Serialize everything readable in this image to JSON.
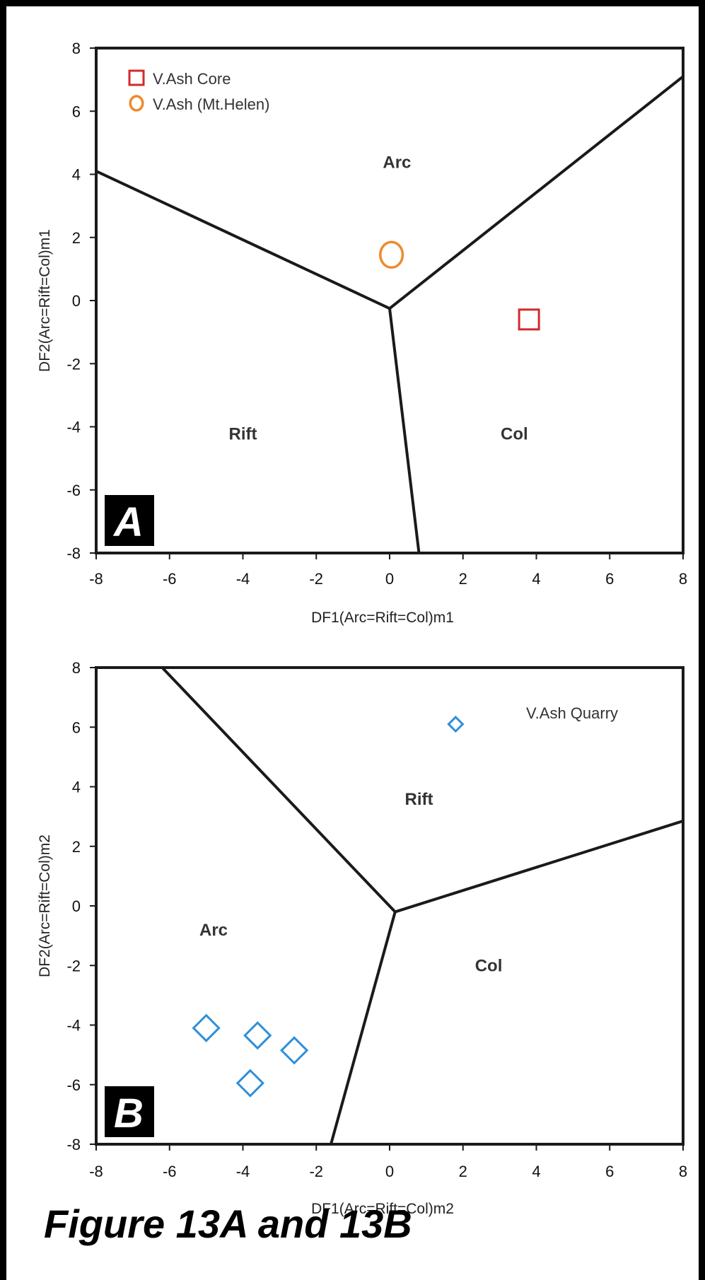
{
  "caption": "Figure 13A and 13B",
  "chart_data": [
    {
      "type": "scatter",
      "panel": "A",
      "xlabel": "DF1(Arc=Rift=Col)m1",
      "ylabel": "DF2(Arc=Rift=Col)m1",
      "xlim": [
        -8,
        8
      ],
      "ylim": [
        -8,
        8
      ],
      "xticks": [
        "-8",
        "-6",
        "-4",
        "-2",
        "0",
        "2",
        "4",
        "6",
        "8"
      ],
      "yticks": [
        "8",
        "6",
        "4",
        "2",
        "0",
        "-2",
        "-4",
        "-6",
        "-8"
      ],
      "grid": false,
      "legend": "top-left",
      "boundaries": [
        [
          [
            -8,
            4.1
          ],
          [
            0,
            -0.25
          ]
        ],
        [
          [
            0,
            -0.25
          ],
          [
            8,
            7.1
          ]
        ],
        [
          [
            0,
            -0.25
          ],
          [
            0.8,
            -8
          ]
        ]
      ],
      "regions": [
        {
          "label": "Arc",
          "x": 0.2,
          "y": 4.2
        },
        {
          "label": "Rift",
          "x": -4,
          "y": -4.4
        },
        {
          "label": "Col",
          "x": 3.4,
          "y": -4.4
        }
      ],
      "series": [
        {
          "name": "V.Ash Core",
          "marker": "square",
          "color": "#d42a2a",
          "x": [
            3.8
          ],
          "y": [
            -0.6
          ]
        },
        {
          "name": "V.Ash (Mt.Helen)",
          "marker": "circle",
          "color": "#ee8a2e",
          "x": [
            0.05
          ],
          "y": [
            1.45
          ]
        }
      ]
    },
    {
      "type": "scatter",
      "panel": "B",
      "xlabel": "DF1(Arc=Rift=Col)m2",
      "ylabel": "DF2(Arc=Rift=Col)m2",
      "xlim": [
        -8,
        8
      ],
      "ylim": [
        -8,
        8
      ],
      "xticks": [
        "-8",
        "-6",
        "-4",
        "-2",
        "0",
        "2",
        "4",
        "6",
        "8"
      ],
      "yticks": [
        "8",
        "6",
        "4",
        "2",
        "0",
        "-2",
        "-4",
        "-6",
        "-8"
      ],
      "grid": false,
      "legend": "top-right",
      "boundaries": [
        [
          [
            -6.2,
            8
          ],
          [
            0.15,
            -0.2
          ]
        ],
        [
          [
            0.15,
            -0.2
          ],
          [
            8,
            2.85
          ]
        ],
        [
          [
            0.15,
            -0.2
          ],
          [
            -1.6,
            -8
          ]
        ]
      ],
      "regions": [
        {
          "label": "Rift",
          "x": 0.8,
          "y": 3.4
        },
        {
          "label": "Arc",
          "x": -4.8,
          "y": -1.0
        },
        {
          "label": "Col",
          "x": 2.7,
          "y": -2.2
        }
      ],
      "series": [
        {
          "name": "V.Ash Quarry",
          "marker": "diamond",
          "color": "#2f8fd8",
          "x": [
            1.8,
            -5.0,
            -3.6,
            -2.6,
            -3.8
          ],
          "y": [
            6.1,
            -4.1,
            -4.35,
            -4.85,
            -5.95
          ],
          "sizes": [
            "small",
            "large",
            "large",
            "large",
            "large"
          ]
        }
      ]
    }
  ]
}
